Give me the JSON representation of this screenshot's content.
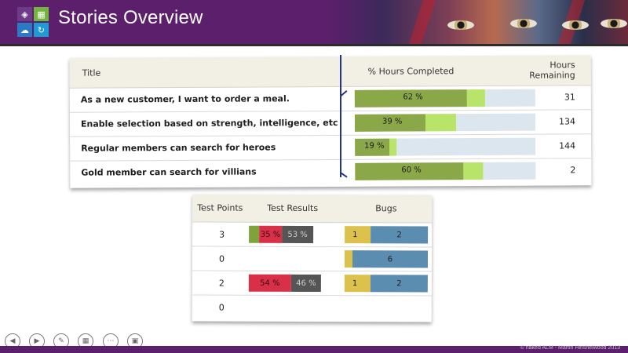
{
  "header": {
    "title": "Stories Overview"
  },
  "stories_table": {
    "columns": {
      "title": "Title",
      "pct": "% Hours Completed",
      "remaining": "Hours\nRemaining",
      "remaining_line1": "Hours",
      "remaining_line2": "Remaining"
    },
    "rows": [
      {
        "title": "As a new customer, I want to order a meal.",
        "pct_label": "62 %",
        "completed": 0.62,
        "in_progress": 0.1,
        "hours": "31"
      },
      {
        "title": "Enable selection based on strength, intelligence, etc",
        "pct_label": "39 %",
        "completed": 0.39,
        "in_progress": 0.17,
        "hours": "134"
      },
      {
        "title": "Regular members can search for heroes",
        "pct_label": "19 %",
        "completed": 0.19,
        "in_progress": 0.04,
        "hours": "144"
      },
      {
        "title": "Gold member can search for villians",
        "pct_label": "60 %",
        "completed": 0.6,
        "in_progress": 0.11,
        "hours": "2"
      }
    ]
  },
  "test_table": {
    "columns": {
      "test_points": "Test Points",
      "test_results": "Test Results",
      "bugs": "Bugs"
    },
    "rows": [
      {
        "test_points": "3",
        "failed_label": "35 %",
        "notrun_label": "53 %",
        "bug_active": "1",
        "bug_resolved": "2"
      },
      {
        "test_points": "0",
        "bug_resolved": "6"
      },
      {
        "test_points": "2",
        "failed_label": "54 %",
        "notrun_label": "46 %",
        "bug_active": "1",
        "bug_resolved": "2"
      },
      {
        "test_points": "0"
      }
    ]
  },
  "colors": {
    "brand": "#5b1f6b",
    "completed": "#8aa848",
    "in_progress": "#b9e46a",
    "remaining": "#dce6ef",
    "passed": "#7fa33a",
    "failed": "#d9304a",
    "not_run": "#555555",
    "bug_active": "#dcc24c",
    "bug_resolved": "#5b8db0"
  },
  "footer": {
    "copyright": "© naked ALM - Martin Hinshelwood 2013",
    "nav_icons": [
      "back-icon",
      "forward-icon",
      "pen-icon",
      "slide-sorter-icon",
      "more-icon",
      "zoom-icon"
    ]
  }
}
